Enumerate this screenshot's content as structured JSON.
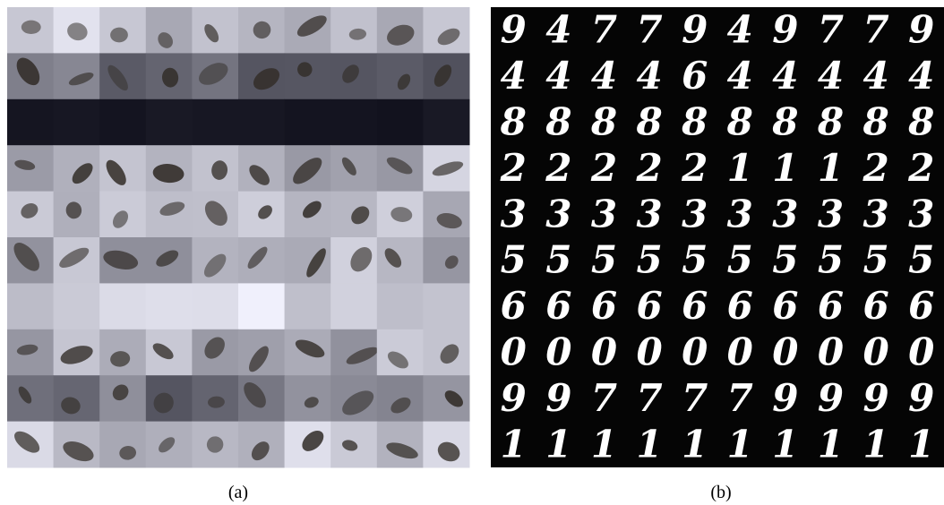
{
  "panel_a": {
    "caption": "(a)"
  },
  "panel_b": {
    "caption": "(b)",
    "rows": [
      [
        "9",
        "4",
        "7",
        "7",
        "9",
        "4",
        "9",
        "7",
        "7",
        "9"
      ],
      [
        "4",
        "4",
        "4",
        "4",
        "6",
        "4",
        "4",
        "4",
        "4",
        "4"
      ],
      [
        "8",
        "8",
        "8",
        "8",
        "8",
        "8",
        "8",
        "8",
        "8",
        "8"
      ],
      [
        "2",
        "2",
        "2",
        "2",
        "2",
        "1",
        "1",
        "1",
        "2",
        "2"
      ],
      [
        "3",
        "3",
        "3",
        "3",
        "3",
        "3",
        "3",
        "3",
        "3",
        "3"
      ],
      [
        "5",
        "5",
        "5",
        "5",
        "5",
        "5",
        "5",
        "5",
        "5",
        "5"
      ],
      [
        "6",
        "6",
        "6",
        "6",
        "6",
        "6",
        "6",
        "6",
        "6",
        "6"
      ],
      [
        "0",
        "0",
        "0",
        "0",
        "0",
        "0",
        "0",
        "0",
        "0",
        "0"
      ],
      [
        "9",
        "9",
        "7",
        "7",
        "7",
        "7",
        "9",
        "9",
        "9",
        "9"
      ],
      [
        "1",
        "1",
        "1",
        "1",
        "1",
        "1",
        "1",
        "1",
        "1",
        "1"
      ]
    ]
  }
}
